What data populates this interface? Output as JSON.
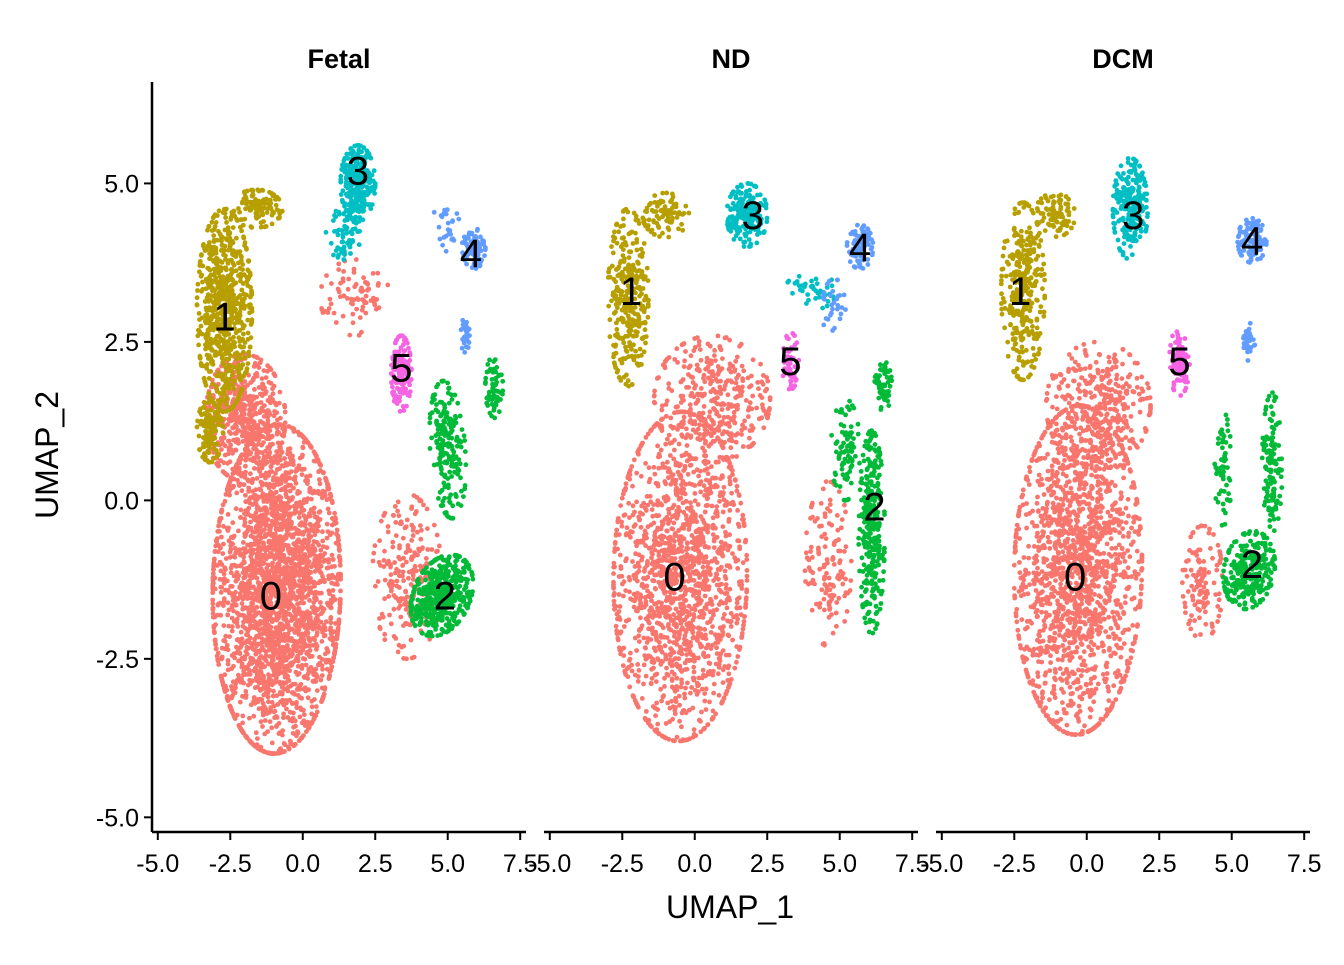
{
  "chart_data": {
    "type": "scatter",
    "facet_by": "condition",
    "xlabel": "UMAP_1",
    "ylabel": "UMAP_2",
    "xlim": [
      -5.2,
      7.7
    ],
    "ylim": [
      -5.2,
      6.6
    ],
    "x_ticks": [
      -5.0,
      -2.5,
      0.0,
      2.5,
      5.0,
      7.5
    ],
    "x_tick_labels": [
      "-5.0",
      "-2.5",
      "0.0",
      "2.5",
      "5.0",
      "7.5"
    ],
    "y_ticks": [
      -5.0,
      -2.5,
      0.0,
      2.5,
      5.0
    ],
    "y_tick_labels": [
      "-5.0",
      "-2.5",
      "0.0",
      "2.5",
      "5.0"
    ],
    "grid": false,
    "legend": "none",
    "clusters": [
      {
        "id": "0",
        "color": "#F8766D"
      },
      {
        "id": "1",
        "color": "#B79F00"
      },
      {
        "id": "2",
        "color": "#00BA38"
      },
      {
        "id": "3",
        "color": "#00BFC4"
      },
      {
        "id": "4",
        "color": "#619CFF"
      },
      {
        "id": "5",
        "color": "#F564E3"
      }
    ],
    "panels": [
      {
        "title": "Fetal",
        "cluster_centers": [
          {
            "cluster": "0",
            "x": -1.1,
            "y": -1.5
          },
          {
            "cluster": "1",
            "x": -2.7,
            "y": 2.9
          },
          {
            "cluster": "2",
            "x": 4.9,
            "y": -1.5
          },
          {
            "cluster": "3",
            "x": 1.9,
            "y": 5.2
          },
          {
            "cluster": "4",
            "x": 5.8,
            "y": 3.9
          },
          {
            "cluster": "5",
            "x": 3.4,
            "y": 2.1
          }
        ]
      },
      {
        "title": "ND",
        "cluster_centers": [
          {
            "cluster": "0",
            "x": -0.7,
            "y": -1.2
          },
          {
            "cluster": "1",
            "x": -2.2,
            "y": 3.3
          },
          {
            "cluster": "2",
            "x": 6.2,
            "y": -0.1
          },
          {
            "cluster": "3",
            "x": 2.0,
            "y": 4.5
          },
          {
            "cluster": "4",
            "x": 5.7,
            "y": 4.0
          },
          {
            "cluster": "5",
            "x": 3.3,
            "y": 2.2
          }
        ]
      },
      {
        "title": "DCM",
        "cluster_centers": [
          {
            "cluster": "0",
            "x": -0.4,
            "y": -1.2
          },
          {
            "cluster": "1",
            "x": -2.3,
            "y": 3.3
          },
          {
            "cluster": "2",
            "x": 5.7,
            "y": -1.0
          },
          {
            "cluster": "3",
            "x": 1.6,
            "y": 4.5
          },
          {
            "cluster": "4",
            "x": 5.7,
            "y": 4.1
          },
          {
            "cluster": "5",
            "x": 3.2,
            "y": 2.2
          }
        ]
      }
    ]
  }
}
